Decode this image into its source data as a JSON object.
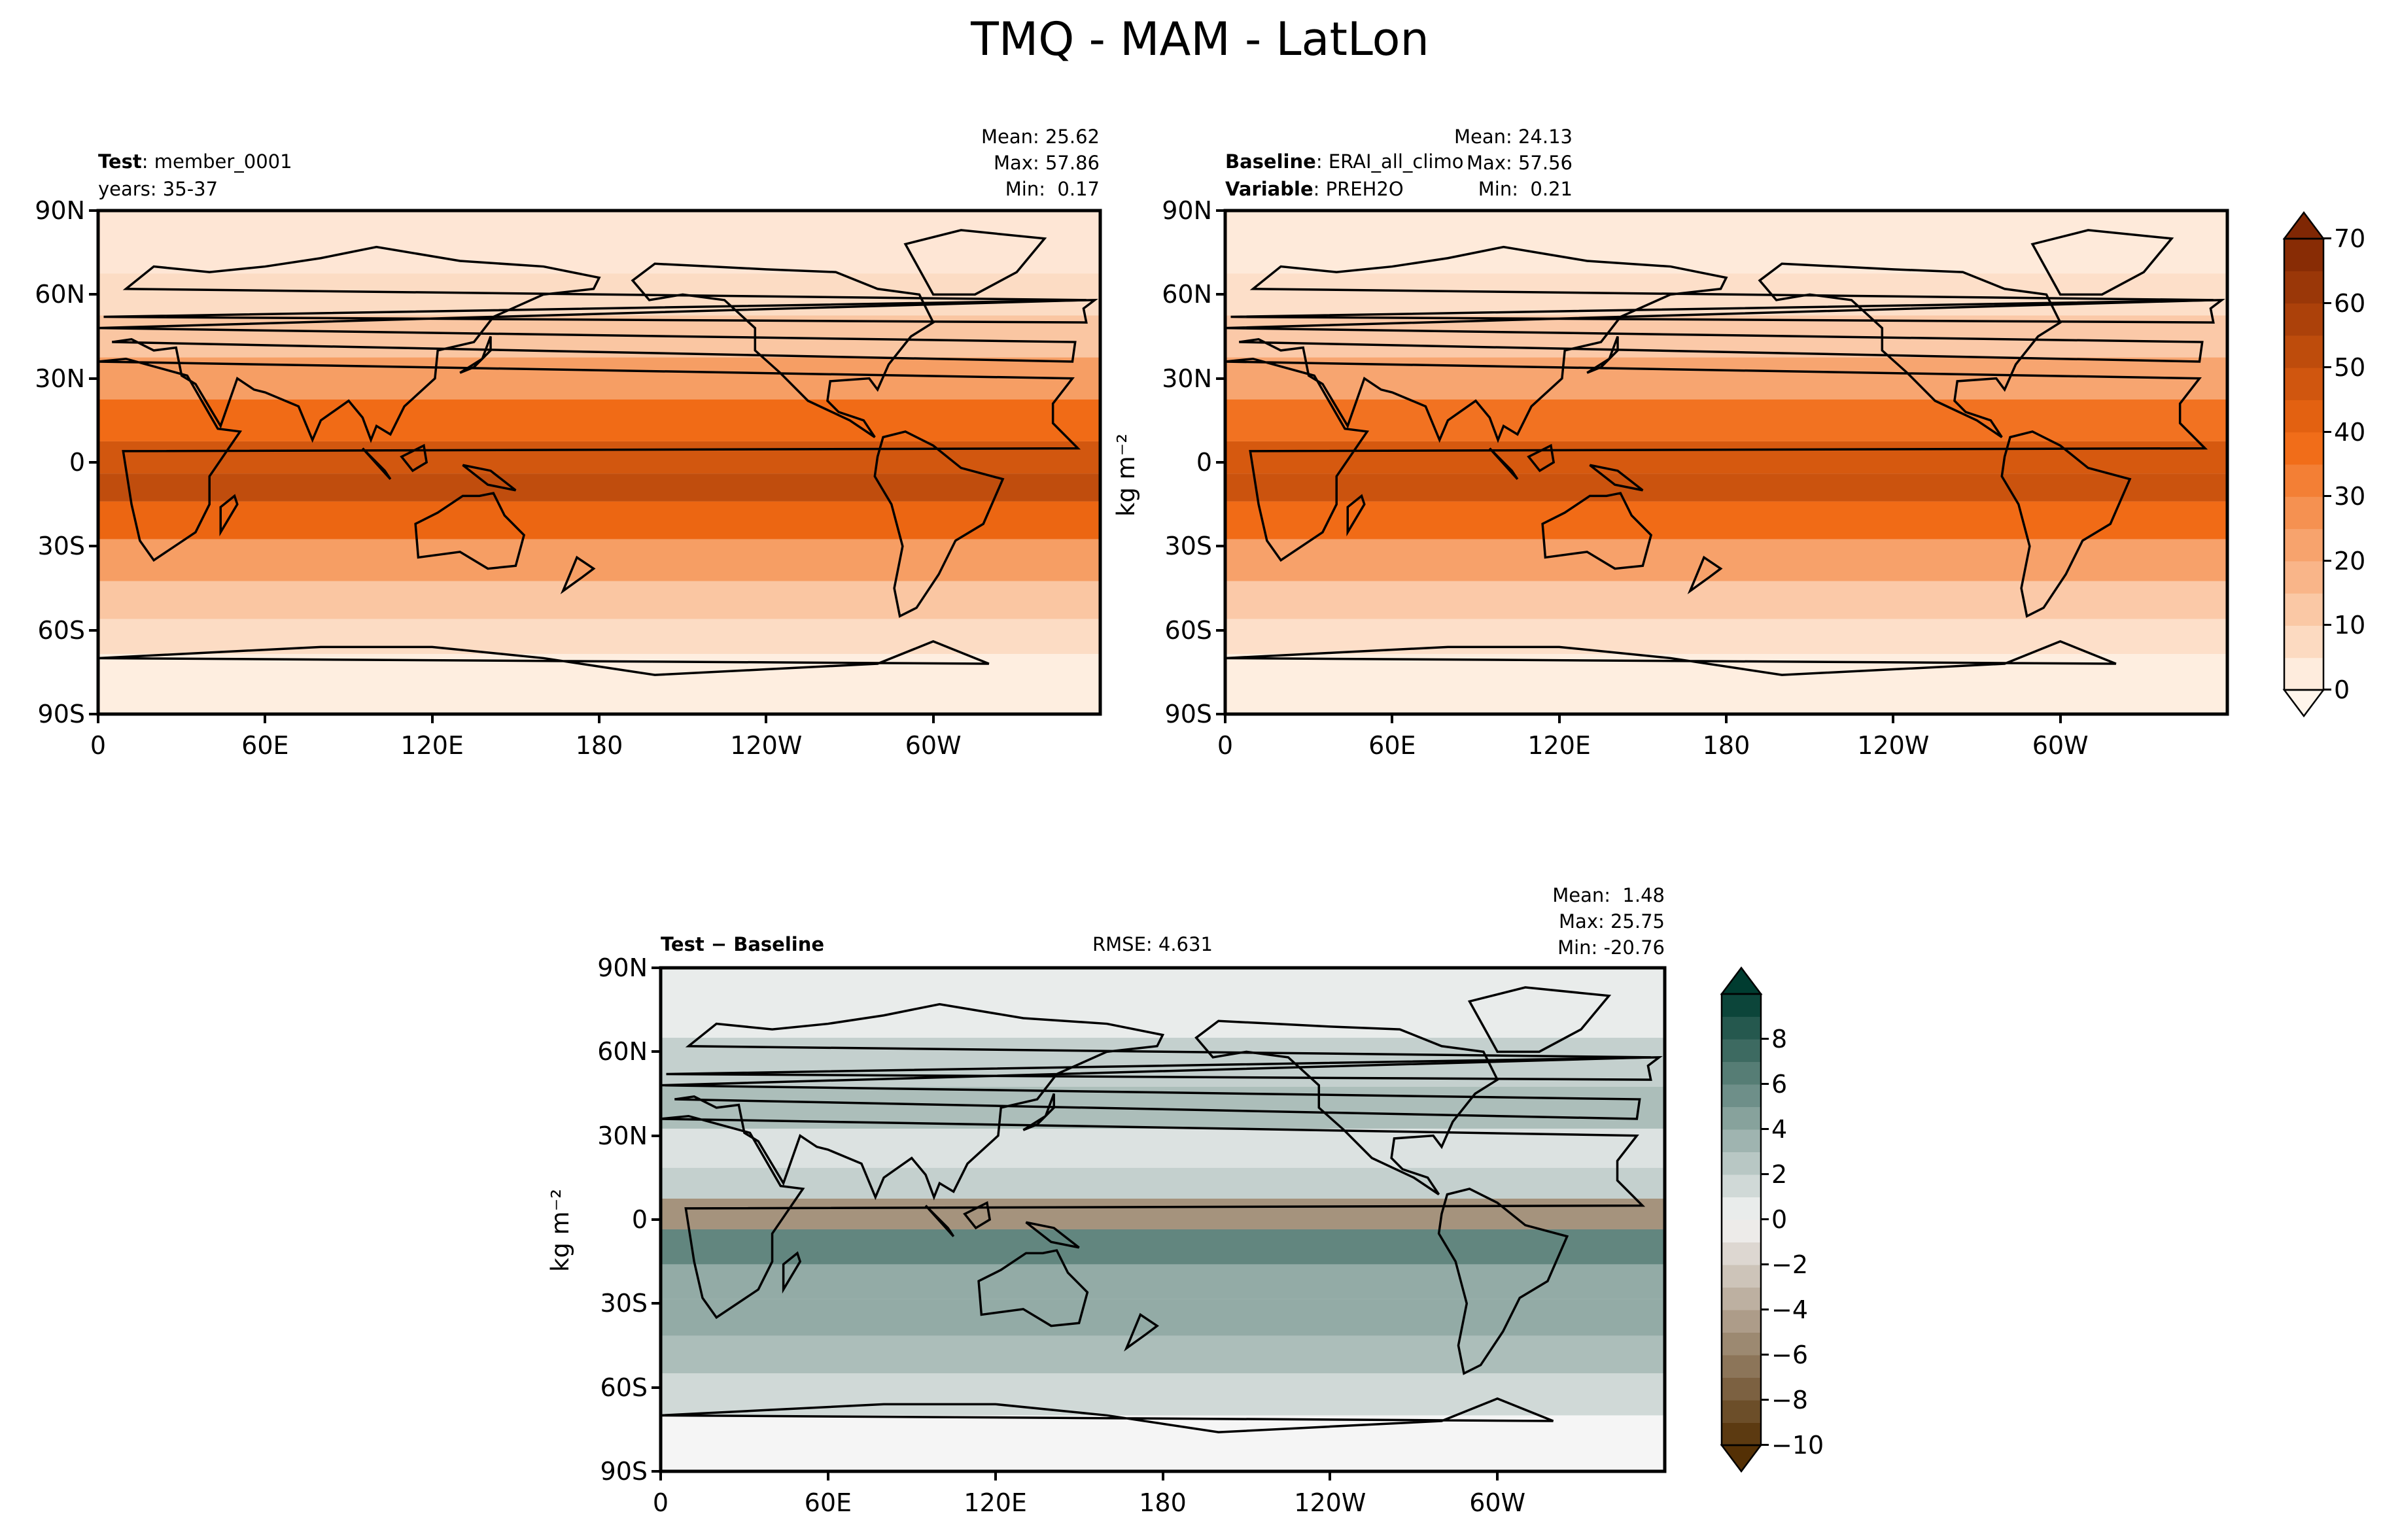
{
  "page": {
    "title": "TMQ - MAM - LatLon"
  },
  "colors": {
    "seq_low": "#fff5eb",
    "seq_high": "#7f2704",
    "div_low": "#543005",
    "div_mid": "#f5f5f5",
    "div_high": "#003c30"
  },
  "chart_data": [
    {
      "type": "heatmap",
      "panel": "test",
      "label_bold": "Test",
      "label_value": "member_0001",
      "years": "years: 35-37",
      "stats": {
        "mean": "Mean: 25.62",
        "max": "Max: 57.86",
        "min": "Min:  0.17"
      },
      "xlabel": "",
      "ylabel": "",
      "x_ticks": [
        "0",
        "60E",
        "120E",
        "180",
        "120W",
        "60W"
      ],
      "y_ticks": [
        "90N",
        "60N",
        "30N",
        "0",
        "30S",
        "60S",
        "90S"
      ],
      "xlim": [
        0,
        360
      ],
      "ylim": [
        -90,
        90
      ],
      "colormap": "Oranges",
      "vlim": [
        0,
        70
      ],
      "units": "kg m^-2",
      "bands": [
        {
          "lat": 75,
          "value": 4
        },
        {
          "lat": 60,
          "value": 7
        },
        {
          "lat": 45,
          "value": 13
        },
        {
          "lat": 30,
          "value": 24
        },
        {
          "lat": 15,
          "value": 38
        },
        {
          "lat": 0,
          "value": 47
        },
        {
          "lat": -8,
          "value": 52
        },
        {
          "lat": -20,
          "value": 40
        },
        {
          "lat": -35,
          "value": 24
        },
        {
          "lat": -50,
          "value": 13
        },
        {
          "lat": -62,
          "value": 7
        },
        {
          "lat": -75,
          "value": 2
        }
      ]
    },
    {
      "type": "heatmap",
      "panel": "baseline",
      "label_bold": "Baseline",
      "label_value": "ERAI_all_climo",
      "label2_bold": "Variable",
      "label2_value": "PREH2O",
      "stats": {
        "mean": "Mean: 24.13",
        "max": "Max: 57.56",
        "min": "Min:  0.21"
      },
      "x_ticks": [
        "0",
        "60E",
        "120E",
        "180",
        "120W",
        "60W"
      ],
      "y_ticks": [
        "90N",
        "60N",
        "30N",
        "0",
        "30S",
        "60S",
        "90S"
      ],
      "xlim": [
        0,
        360
      ],
      "ylim": [
        -90,
        90
      ],
      "colormap": "Oranges",
      "vlim": [
        0,
        70
      ],
      "ylabel": "kg m⁻²",
      "colorbar_ticks": [
        "70",
        "60",
        "50",
        "40",
        "30",
        "20",
        "10",
        "0"
      ],
      "bands": [
        {
          "lat": 75,
          "value": 3
        },
        {
          "lat": 60,
          "value": 6
        },
        {
          "lat": 45,
          "value": 12
        },
        {
          "lat": 30,
          "value": 22
        },
        {
          "lat": 15,
          "value": 36
        },
        {
          "lat": 0,
          "value": 46
        },
        {
          "lat": -8,
          "value": 49
        },
        {
          "lat": -20,
          "value": 38
        },
        {
          "lat": -35,
          "value": 23
        },
        {
          "lat": -50,
          "value": 12
        },
        {
          "lat": -62,
          "value": 6
        },
        {
          "lat": -75,
          "value": 2
        }
      ]
    },
    {
      "type": "heatmap",
      "panel": "difference",
      "label": "Test − Baseline",
      "rmse": "RMSE: 4.631",
      "stats": {
        "mean": "Mean:  1.48",
        "max": "Max: 25.75",
        "min": "Min: -20.76"
      },
      "x_ticks": [
        "0",
        "60E",
        "120E",
        "180",
        "120W",
        "60W"
      ],
      "y_ticks": [
        "90N",
        "60N",
        "30N",
        "0",
        "30S",
        "60S",
        "90S"
      ],
      "xlim": [
        0,
        360
      ],
      "ylim": [
        -90,
        90
      ],
      "colormap": "BrBG",
      "vlim": [
        -10,
        10
      ],
      "ylabel": "kg m⁻²",
      "colorbar_ticks": [
        "8",
        "6",
        "4",
        "2",
        "0",
        "−2",
        "−4",
        "−6",
        "−8",
        "−10"
      ],
      "bands": [
        {
          "lat": 75,
          "value": 0.5
        },
        {
          "lat": 55,
          "value": 2
        },
        {
          "lat": 40,
          "value": 3
        },
        {
          "lat": 25,
          "value": 1
        },
        {
          "lat": 12,
          "value": 2
        },
        {
          "lat": 3,
          "value": -5
        },
        {
          "lat": -10,
          "value": 6
        },
        {
          "lat": -22,
          "value": 4
        },
        {
          "lat": -35,
          "value": 4
        },
        {
          "lat": -48,
          "value": 3
        },
        {
          "lat": -62,
          "value": 1.5
        },
        {
          "lat": -78,
          "value": 0
        }
      ]
    }
  ]
}
